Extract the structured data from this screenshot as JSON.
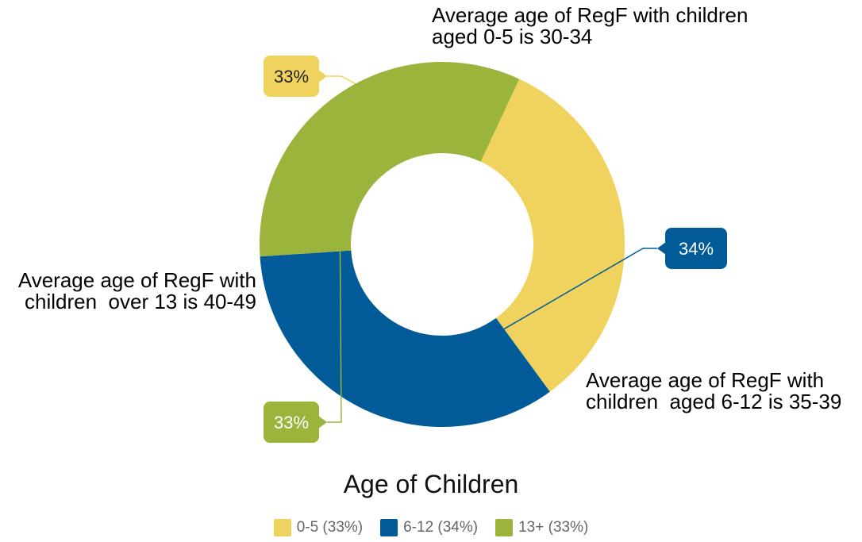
{
  "chart_data": {
    "type": "pie",
    "title": "Age of Children",
    "categories": [
      "0-5",
      "6-12",
      "13+"
    ],
    "values": [
      33,
      34,
      33
    ],
    "value_labels": [
      "33%",
      "34%",
      "33%"
    ],
    "legend_labels": [
      "0-5 (33%)",
      "6-12 (34%)",
      "13+ (33%)"
    ],
    "colors": [
      "#EFD35E",
      "#015B99",
      "#9BB43C"
    ],
    "legend_placement": "bottom",
    "annotations": [
      "Average age of RegF with children\naged 0-5 is 30-34",
      "Average age of RegF with\nchildren  aged 6-12 is 35-39",
      "Average age of RegF with\nchildren  over 13 is 40-49"
    ]
  }
}
